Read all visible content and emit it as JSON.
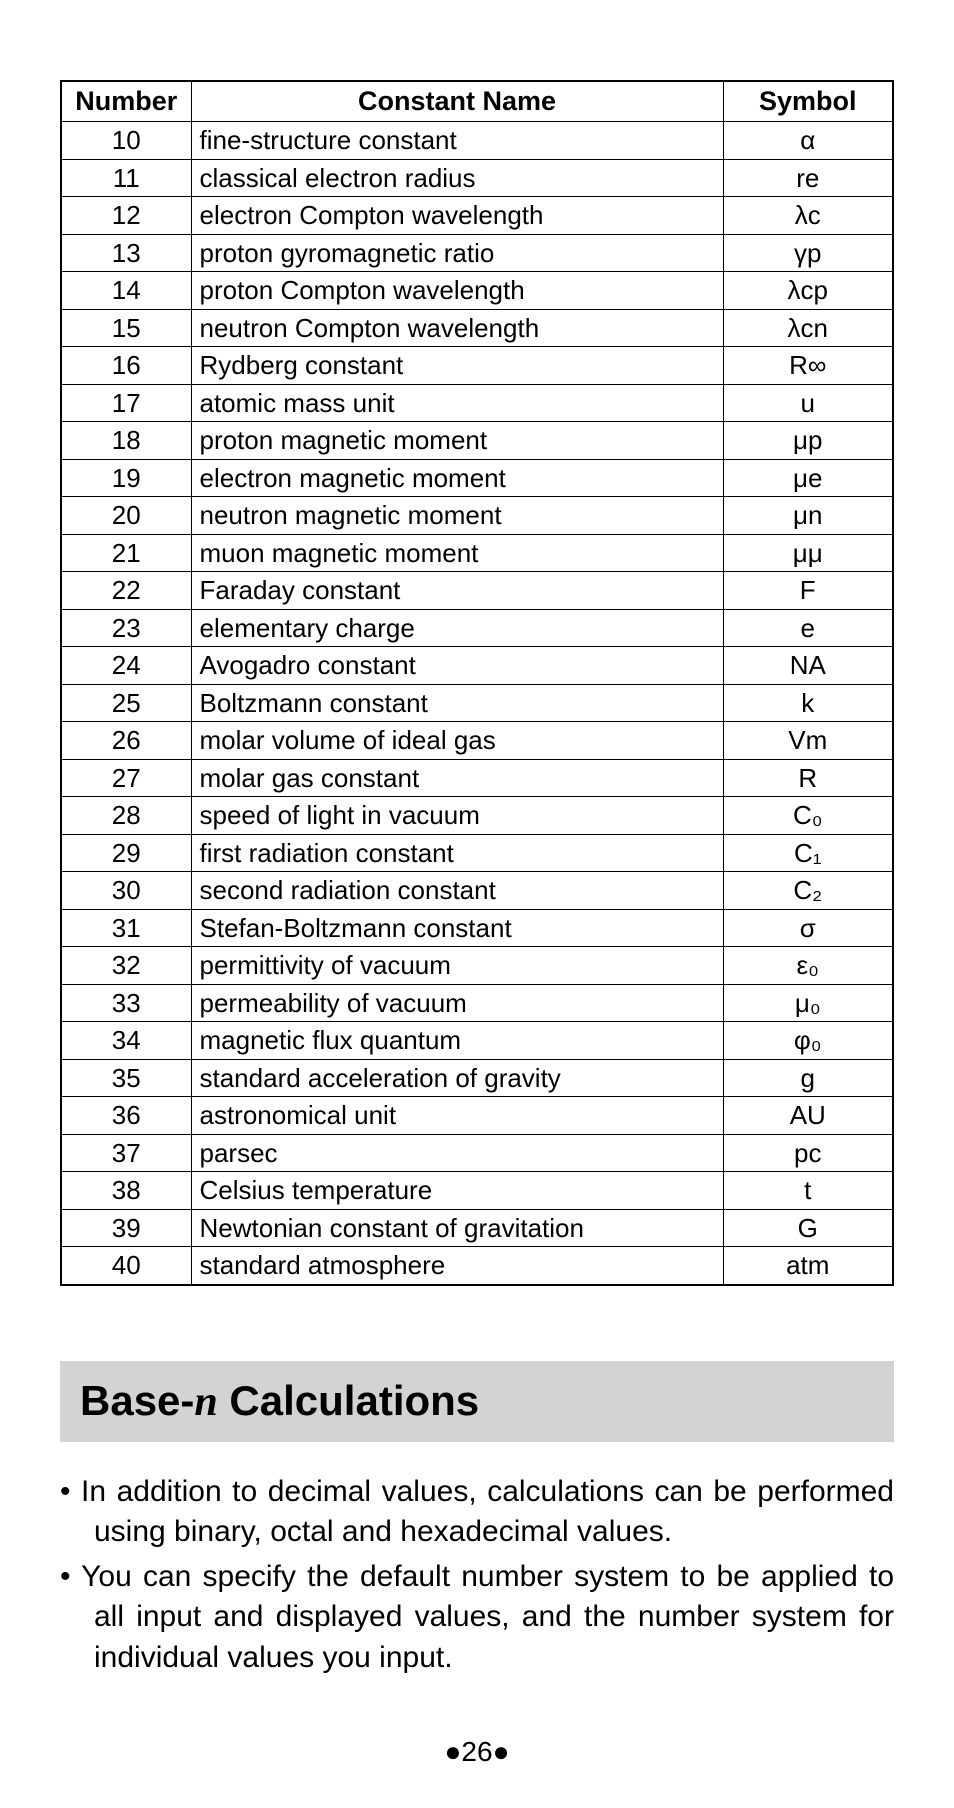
{
  "table": {
    "headers": {
      "number": "Number",
      "name": "Constant Name",
      "symbol": "Symbol"
    },
    "rows": [
      {
        "num": "10",
        "name": "fine-structure constant",
        "sym": "α"
      },
      {
        "num": "11",
        "name": "classical electron radius",
        "sym": "re"
      },
      {
        "num": "12",
        "name": "electron Compton wavelength",
        "sym": "λc"
      },
      {
        "num": "13",
        "name": "proton gyromagnetic ratio",
        "sym": "γp"
      },
      {
        "num": "14",
        "name": "proton Compton wavelength",
        "sym": "λcp"
      },
      {
        "num": "15",
        "name": "neutron Compton wavelength",
        "sym": "λcn"
      },
      {
        "num": "16",
        "name": "Rydberg constant",
        "sym": "R∞"
      },
      {
        "num": "17",
        "name": "atomic mass unit",
        "sym": "u"
      },
      {
        "num": "18",
        "name": "proton magnetic moment",
        "sym": "μp"
      },
      {
        "num": "19",
        "name": "electron magnetic moment",
        "sym": "μe"
      },
      {
        "num": "20",
        "name": "neutron magnetic moment",
        "sym": "μn"
      },
      {
        "num": "21",
        "name": "muon magnetic moment",
        "sym": "μμ"
      },
      {
        "num": "22",
        "name": "Faraday constant",
        "sym": "F"
      },
      {
        "num": "23",
        "name": "elementary charge",
        "sym": "e"
      },
      {
        "num": "24",
        "name": "Avogadro constant",
        "sym": "NA"
      },
      {
        "num": "25",
        "name": "Boltzmann constant",
        "sym": "k"
      },
      {
        "num": "26",
        "name": "molar volume of ideal gas",
        "sym": "Vm"
      },
      {
        "num": "27",
        "name": "molar gas constant",
        "sym": "R"
      },
      {
        "num": "28",
        "name": "speed of light in vacuum",
        "sym": "C₀"
      },
      {
        "num": "29",
        "name": "first radiation constant",
        "sym": "C₁"
      },
      {
        "num": "30",
        "name": "second radiation constant",
        "sym": "C₂"
      },
      {
        "num": "31",
        "name": "Stefan-Boltzmann constant",
        "sym": "σ"
      },
      {
        "num": "32",
        "name": "permittivity of vacuum",
        "sym": "ε₀"
      },
      {
        "num": "33",
        "name": "permeability of vacuum",
        "sym": "μ₀"
      },
      {
        "num": "34",
        "name": "magnetic flux quantum",
        "sym": "φ₀"
      },
      {
        "num": "35",
        "name": "standard acceleration of gravity",
        "sym": "g"
      },
      {
        "num": "36",
        "name": "astronomical unit",
        "sym": "AU"
      },
      {
        "num": "37",
        "name": "parsec",
        "sym": "pc"
      },
      {
        "num": "38",
        "name": "Celsius temperature",
        "sym": "t"
      },
      {
        "num": "39",
        "name": "Newtonian constant of gravitation",
        "sym": "G"
      },
      {
        "num": "40",
        "name": "standard atmosphere",
        "sym": "atm"
      }
    ]
  },
  "heading": {
    "prefix": "Base-",
    "ital": "n",
    "suffix": " Calculations"
  },
  "bullets": [
    "In addition to decimal values, calculations can be performed using binary, octal and hexadecimal values.",
    "You can specify the default number system to be applied to all input and displayed values, and the number system for individual values you input."
  ],
  "footer": {
    "page": "26"
  },
  "colors": {
    "heading_bg": "#d3d3d4",
    "text": "#000000",
    "bg": "#ffffff"
  }
}
